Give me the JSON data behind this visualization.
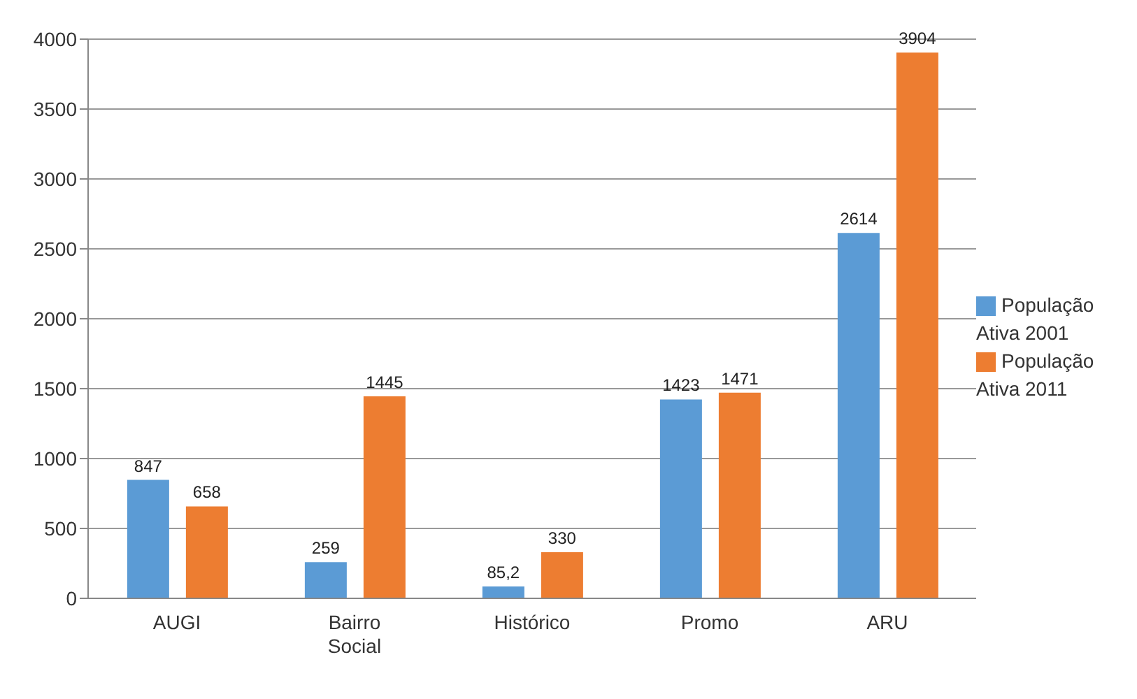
{
  "chart_data": {
    "type": "bar",
    "categories": [
      "AUGI",
      "Bairro Social",
      "Histórico",
      "Promo",
      "ARU"
    ],
    "series": [
      {
        "name": "População Ativa 2001",
        "color": "#5b9bd5",
        "values": [
          847,
          259,
          85.2,
          1423,
          2614
        ],
        "value_labels": [
          "847",
          "259",
          "85,2",
          "1423",
          "2614"
        ]
      },
      {
        "name": "População Ativa 2011",
        "color": "#ed7d31",
        "values": [
          658,
          1445,
          330,
          1471,
          3904
        ],
        "value_labels": [
          "658",
          "1445",
          "330",
          "1471",
          "3904"
        ]
      }
    ],
    "ylim": [
      0,
      4000
    ],
    "yticks": [
      0,
      500,
      1000,
      1500,
      2000,
      2500,
      3000,
      3500,
      4000
    ],
    "grid": "y",
    "legend": "right"
  }
}
